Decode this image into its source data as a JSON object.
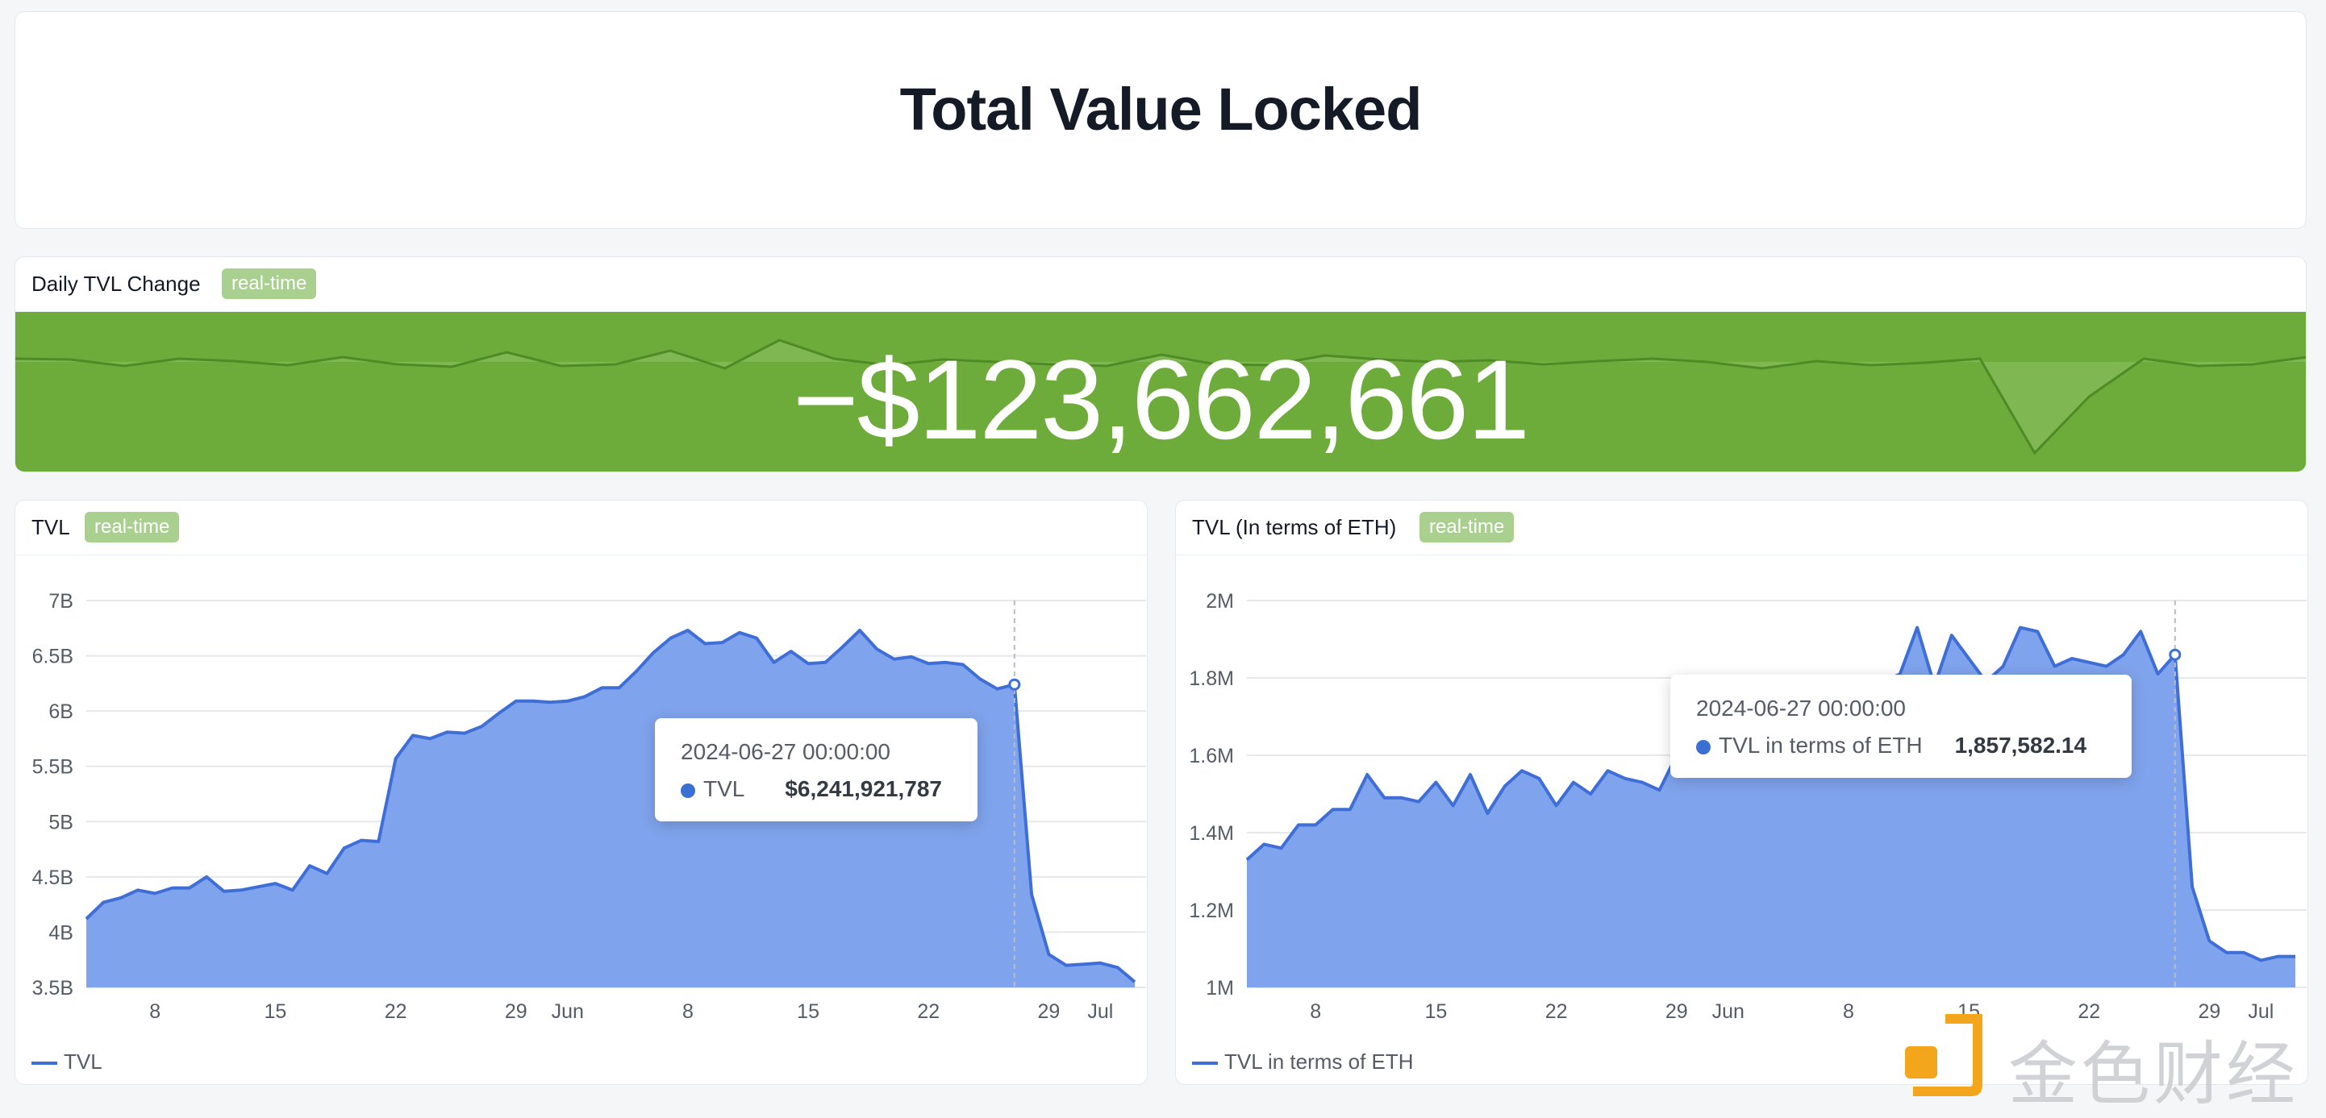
{
  "page": {
    "title": "Total Value Locked"
  },
  "daily": {
    "title": "Daily TVL Change",
    "badge": "real-time",
    "value": "−$123,662,661",
    "colors": {
      "band": "#6dab3a",
      "spark_line": "#4e8a25",
      "spark_fill": "#8cc063"
    }
  },
  "tvl": {
    "title": "TVL",
    "badge": "real-time",
    "legend": "TVL",
    "tooltip": {
      "date": "2024-06-27 00:00:00",
      "series": "TVL",
      "value": "$6,241,921,787"
    }
  },
  "eth": {
    "title": "TVL (In terms of ETH)",
    "badge": "real-time",
    "legend": "TVL in terms of ETH",
    "tooltip": {
      "date": "2024-06-27 00:00:00",
      "series": "TVL in terms of ETH",
      "value": "1,857,582.14"
    }
  },
  "watermark": {
    "text": "金色财经",
    "icon": "jinse-logo-icon"
  },
  "chart_data": [
    {
      "type": "area",
      "title": "TVL",
      "xlabel": "",
      "ylabel": "",
      "x_ticks": [
        "8",
        "15",
        "22",
        "29",
        "Jun",
        "8",
        "15",
        "22",
        "29",
        "Jul"
      ],
      "x_start": "2024-05-04",
      "y_ticks": [
        "3.5B",
        "4B",
        "4.5B",
        "5B",
        "5.5B",
        "6B",
        "6.5B",
        "7B"
      ],
      "ylim": [
        3500000000,
        7000000000
      ],
      "grid": true,
      "legend_position": "bottom-left",
      "color": "#3f6fd6",
      "fill": "#7fa3ec",
      "highlight_date": "2024-06-27",
      "series": [
        {
          "name": "TVL",
          "values": [
            4.12,
            4.27,
            4.31,
            4.38,
            4.35,
            4.4,
            4.4,
            4.5,
            4.37,
            4.38,
            4.41,
            4.44,
            4.38,
            4.6,
            4.53,
            4.76,
            4.83,
            4.82,
            5.57,
            5.78,
            5.75,
            5.81,
            5.8,
            5.86,
            5.98,
            6.09,
            6.09,
            6.08,
            6.09,
            6.13,
            6.21,
            6.21,
            6.36,
            6.53,
            6.66,
            6.73,
            6.61,
            6.62,
            6.71,
            6.66,
            6.44,
            6.54,
            6.43,
            6.44,
            6.58,
            6.73,
            6.56,
            6.47,
            6.49,
            6.43,
            6.44,
            6.42,
            6.29,
            6.2,
            6.24,
            4.34,
            3.8,
            3.7,
            3.71,
            3.72,
            3.68,
            3.55
          ]
        }
      ],
      "value_unit": "B"
    },
    {
      "type": "area",
      "title": "TVL (In terms of ETH)",
      "xlabel": "",
      "ylabel": "",
      "x_ticks": [
        "8",
        "15",
        "22",
        "29",
        "Jun",
        "8",
        "15",
        "22",
        "29",
        "Jul"
      ],
      "x_start": "2024-05-04",
      "y_ticks": [
        "1M",
        "1.2M",
        "1.4M",
        "1.6M",
        "1.8M",
        "2M"
      ],
      "ylim": [
        1000000,
        2000000
      ],
      "grid": true,
      "legend_position": "bottom-left",
      "color": "#3f6fd6",
      "fill": "#7fa3ec",
      "highlight_date": "2024-06-27",
      "series": [
        {
          "name": "TVL in terms of ETH",
          "values": [
            1.33,
            1.37,
            1.36,
            1.42,
            1.42,
            1.46,
            1.46,
            1.55,
            1.49,
            1.49,
            1.48,
            1.53,
            1.47,
            1.55,
            1.45,
            1.52,
            1.56,
            1.54,
            1.47,
            1.53,
            1.5,
            1.56,
            1.54,
            1.53,
            1.51,
            1.6,
            1.57,
            1.61,
            1.59,
            1.64,
            1.61,
            1.66,
            1.64,
            1.66,
            1.68,
            1.77,
            1.78,
            1.79,
            1.81,
            1.93,
            1.78,
            1.91,
            1.85,
            1.79,
            1.83,
            1.93,
            1.92,
            1.83,
            1.85,
            1.84,
            1.83,
            1.86,
            1.92,
            1.81,
            1.86,
            1.26,
            1.12,
            1.09,
            1.09,
            1.07,
            1.08,
            1.08
          ]
        }
      ],
      "value_unit": "M"
    }
  ]
}
